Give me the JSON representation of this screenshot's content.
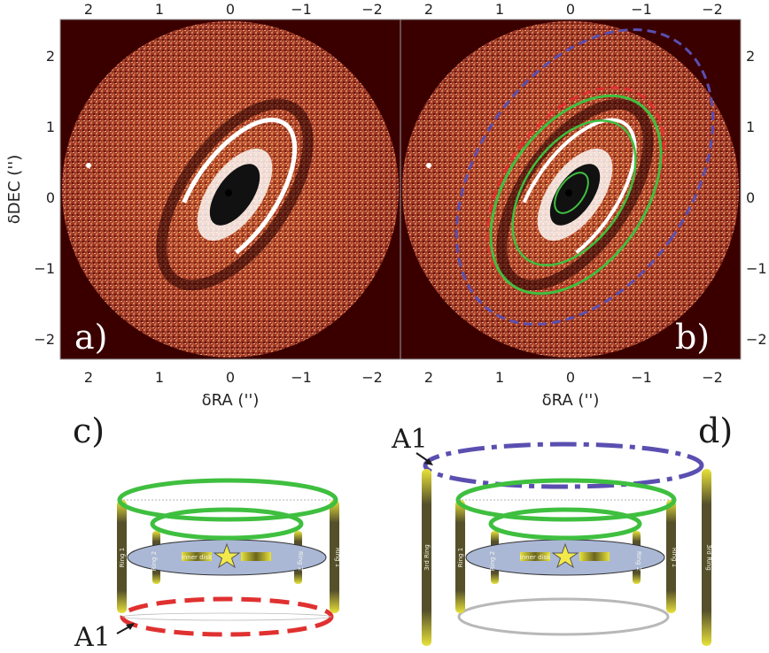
{
  "panels": {
    "a": {
      "letter": "a)"
    },
    "b": {
      "letter": "b)"
    },
    "c": {
      "letter": "c)",
      "a1": "A1"
    },
    "d": {
      "letter": "d)",
      "a1": "A1"
    }
  },
  "axes": {
    "xlabel": "δRA ('')",
    "ylabel": "δDEC ('')",
    "x_ticks": [
      "2",
      "1",
      "0",
      "−1",
      "−2"
    ],
    "y_ticks": [
      "2",
      "1",
      "0",
      "−1",
      "−2"
    ]
  },
  "schematic": {
    "ring1": "Ring 1",
    "ring2": "Ring 2",
    "ring3": "3rd Ring",
    "inner_disk": "Inner disk"
  },
  "colors": {
    "image_background": "#3a0000",
    "green_ring": "#3fbf3f",
    "red_ring": "#e03030",
    "blue_ring": "#5a4fb0",
    "pillar_yellow": "#e8e23a",
    "disk_fill": "#aab8d6"
  }
}
